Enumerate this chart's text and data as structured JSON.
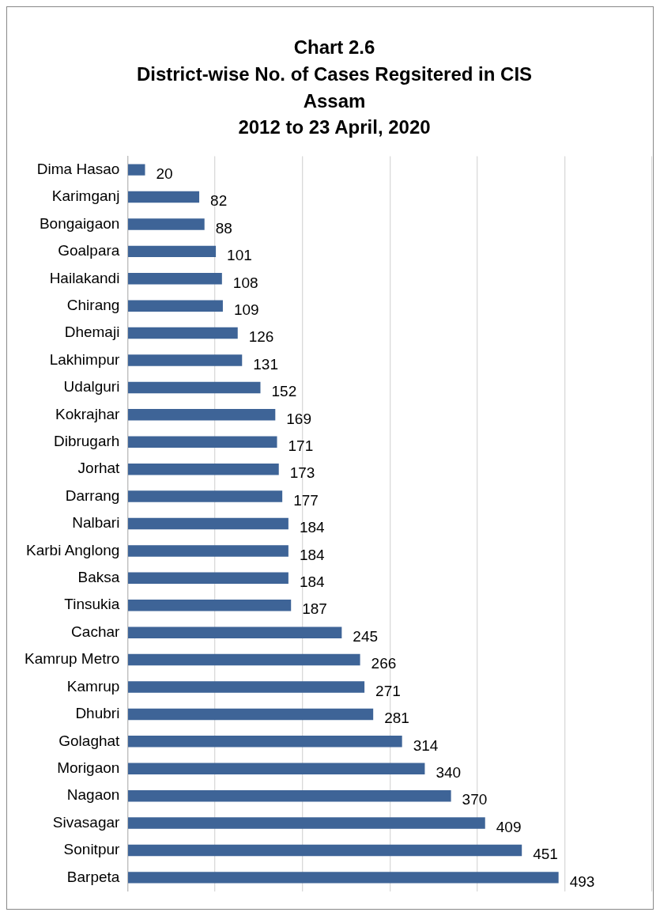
{
  "chart_data": {
    "type": "bar",
    "orientation": "horizontal",
    "title": "Chart 2.6\nDistrict-wise No. of Cases Regsitered in CIS\nAssam\n2012 to 23 April, 2020",
    "categories": [
      "Dima Hasao",
      "Karimganj",
      "Bongaigaon",
      "Goalpara",
      "Hailakandi",
      "Chirang",
      "Dhemaji",
      "Lakhimpur",
      "Udalguri",
      "Kokrajhar",
      "Dibrugarh",
      "Jorhat",
      "Darrang",
      "Nalbari",
      "Karbi Anglong",
      "Baksa",
      "Tinsukia",
      "Cachar",
      "Kamrup Metro",
      "Kamrup",
      "Dhubri",
      "Golaghat",
      "Morigaon",
      "Nagaon",
      "Sivasagar",
      "Sonitpur",
      "Barpeta"
    ],
    "values": [
      20,
      82,
      88,
      101,
      108,
      109,
      126,
      131,
      152,
      169,
      171,
      173,
      177,
      184,
      184,
      184,
      187,
      245,
      266,
      271,
      281,
      314,
      340,
      370,
      409,
      451,
      493
    ],
    "color": "#3e6497",
    "xlim": [
      0,
      600
    ],
    "xticks": [
      {
        "value": 0,
        "label": null
      },
      {
        "value": 100,
        "label": null
      },
      {
        "value": 200,
        "label": null
      },
      {
        "value": 300,
        "label": null
      },
      {
        "value": 400,
        "label": null
      },
      {
        "value": 500,
        "label": null
      },
      {
        "value": 600,
        "label": null
      }
    ],
    "tick_labels": "y",
    "grid": "x",
    "legend": false,
    "data_labels": true
  }
}
